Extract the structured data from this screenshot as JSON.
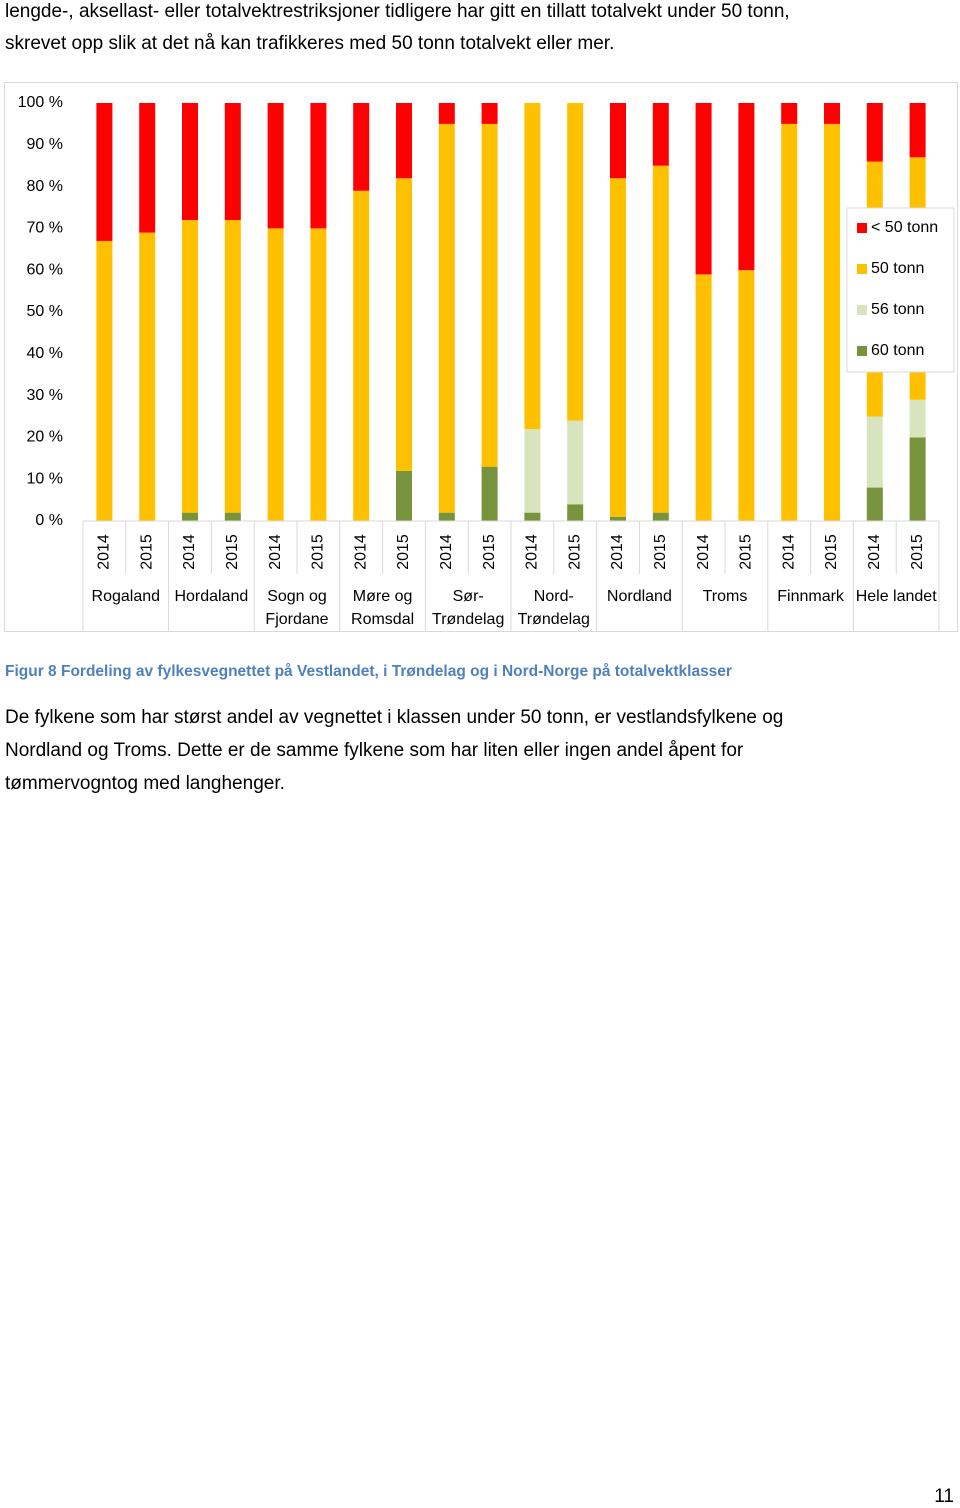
{
  "document": {
    "intro_lines": [
      "lengde-, aksellast- eller totalvektrestriksjoner tidligere har gitt en tillatt totalvekt under 50 tonn,",
      "skrevet opp slik at det nå kan trafikkeres med 50 tonn totalvekt eller mer."
    ],
    "caption": "Figur 8 Fordeling av fylkesvegnettet på Vestlandet, i Trøndelag og i Nord-Norge på totalvektklasser",
    "body_lines": [
      "De fylkene som har størst andel av vegnettet i klassen under 50 tonn, er vestlandsfylkene og",
      "Nordland og Troms. Dette er de samme fylkene som har liten eller ingen andel åpent for",
      "tømmervogntog med langhenger."
    ],
    "page_number": "11"
  },
  "chart_data": {
    "type": "stacked_bar",
    "categories": [
      "2014",
      "2015",
      "2014",
      "2015",
      "2014",
      "2015",
      "2014",
      "2015",
      "2014",
      "2015",
      "2014",
      "2015",
      "2014",
      "2015",
      "2014",
      "2015",
      "2014",
      "2015",
      "2014",
      "2015"
    ],
    "groups": [
      "Rogaland",
      "Hordaland",
      "Sogn og Fjordane",
      "Møre og Romsdal",
      "Sør-Trøndelag",
      "Nord-Trøndelag",
      "Nordland",
      "Troms",
      "Finnmark",
      "Hele landet"
    ],
    "series": [
      {
        "name": "60 tonn",
        "color": "#77933c",
        "values": [
          0,
          0,
          2,
          2,
          0,
          0,
          0,
          12,
          2,
          13,
          2,
          4,
          1,
          2,
          0,
          0,
          0,
          0,
          8,
          20
        ]
      },
      {
        "name": "56 tonn",
        "color": "#d7e4bd",
        "values": [
          0,
          0,
          0,
          0,
          0,
          0,
          0,
          0,
          0,
          0,
          20,
          20,
          0,
          0,
          0,
          0,
          0,
          0,
          17,
          9
        ]
      },
      {
        "name": "50 tonn",
        "color": "#ffc000",
        "values": [
          67,
          69,
          70,
          70,
          70,
          70,
          79,
          70,
          93,
          82,
          78,
          76,
          81,
          83,
          59,
          60,
          95,
          95,
          61,
          58
        ]
      },
      {
        "name": "< 50 tonn",
        "color": "#ff0000",
        "values": [
          33,
          31,
          28,
          28,
          30,
          30,
          21,
          18,
          5,
          5,
          0,
          0,
          18,
          15,
          41,
          40,
          5,
          5,
          14,
          13
        ]
      }
    ],
    "ylim": [
      0,
      100
    ],
    "yticks": [
      {
        "value": 0,
        "label": "0 %"
      },
      {
        "value": 10,
        "label": "10 %"
      },
      {
        "value": 20,
        "label": "20 %"
      },
      {
        "value": 30,
        "label": "30 %"
      },
      {
        "value": 40,
        "label": "40 %"
      },
      {
        "value": 50,
        "label": "50 %"
      },
      {
        "value": 60,
        "label": "60 %"
      },
      {
        "value": 70,
        "label": "70 %"
      },
      {
        "value": 80,
        "label": "80 %"
      },
      {
        "value": 90,
        "label": "90 %"
      },
      {
        "value": 100,
        "label": "100 %"
      }
    ],
    "legend_position": "right"
  }
}
